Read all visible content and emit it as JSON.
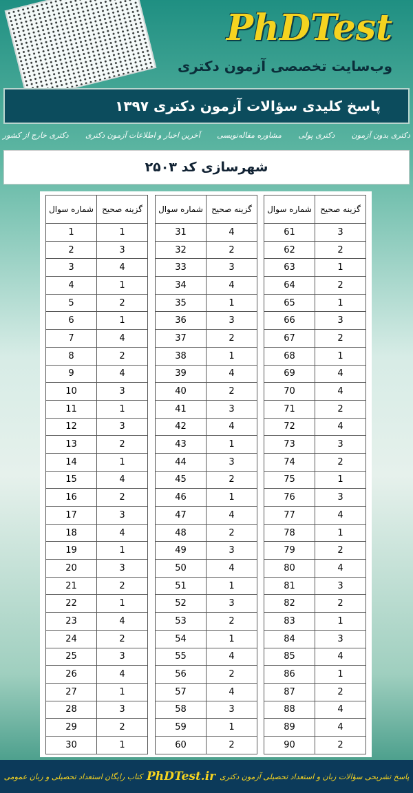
{
  "header": {
    "logo": "PhDTest",
    "tagline": "وب‌سایت تخصصی آزمون دکتری",
    "banner": "پاسخ کلیدی سؤالات آزمون دکتری ۱۳۹۷"
  },
  "nav": {
    "links": [
      "دکتری خارج از کشور",
      "آخرین اخبار و اطلاعات آزمون دکتری",
      "مشاوره مقاله‌نویسی",
      "دکتری پولی",
      "دکتری بدون آزمون"
    ]
  },
  "subject": "شهرسازی کد ۲۵۰۳",
  "table": {
    "headers": {
      "number": "شماره سوال",
      "answer": "گزینه صحیح"
    },
    "blocks": [
      {
        "rows": [
          [
            1,
            1
          ],
          [
            2,
            3
          ],
          [
            3,
            4
          ],
          [
            4,
            1
          ],
          [
            5,
            2
          ],
          [
            6,
            1
          ],
          [
            7,
            4
          ],
          [
            8,
            2
          ],
          [
            9,
            4
          ],
          [
            10,
            3
          ],
          [
            11,
            1
          ],
          [
            12,
            3
          ],
          [
            13,
            2
          ],
          [
            14,
            1
          ],
          [
            15,
            4
          ],
          [
            16,
            2
          ],
          [
            17,
            3
          ],
          [
            18,
            4
          ],
          [
            19,
            1
          ],
          [
            20,
            3
          ],
          [
            21,
            2
          ],
          [
            22,
            1
          ],
          [
            23,
            4
          ],
          [
            24,
            2
          ],
          [
            25,
            3
          ],
          [
            26,
            4
          ],
          [
            27,
            1
          ],
          [
            28,
            3
          ],
          [
            29,
            2
          ],
          [
            30,
            1
          ]
        ]
      },
      {
        "rows": [
          [
            31,
            4
          ],
          [
            32,
            2
          ],
          [
            33,
            3
          ],
          [
            34,
            4
          ],
          [
            35,
            1
          ],
          [
            36,
            3
          ],
          [
            37,
            2
          ],
          [
            38,
            1
          ],
          [
            39,
            4
          ],
          [
            40,
            2
          ],
          [
            41,
            3
          ],
          [
            42,
            4
          ],
          [
            43,
            1
          ],
          [
            44,
            3
          ],
          [
            45,
            2
          ],
          [
            46,
            1
          ],
          [
            47,
            4
          ],
          [
            48,
            2
          ],
          [
            49,
            3
          ],
          [
            50,
            4
          ],
          [
            51,
            1
          ],
          [
            52,
            3
          ],
          [
            53,
            2
          ],
          [
            54,
            1
          ],
          [
            55,
            4
          ],
          [
            56,
            2
          ],
          [
            57,
            4
          ],
          [
            58,
            3
          ],
          [
            59,
            1
          ],
          [
            60,
            2
          ]
        ]
      },
      {
        "rows": [
          [
            61,
            3
          ],
          [
            62,
            2
          ],
          [
            63,
            1
          ],
          [
            64,
            2
          ],
          [
            65,
            1
          ],
          [
            66,
            3
          ],
          [
            67,
            2
          ],
          [
            68,
            1
          ],
          [
            69,
            4
          ],
          [
            70,
            4
          ],
          [
            71,
            2
          ],
          [
            72,
            4
          ],
          [
            73,
            3
          ],
          [
            74,
            2
          ],
          [
            75,
            1
          ],
          [
            76,
            3
          ],
          [
            77,
            4
          ],
          [
            78,
            1
          ],
          [
            79,
            2
          ],
          [
            80,
            4
          ],
          [
            81,
            3
          ],
          [
            82,
            2
          ],
          [
            83,
            1
          ],
          [
            84,
            3
          ],
          [
            85,
            4
          ],
          [
            86,
            1
          ],
          [
            87,
            2
          ],
          [
            88,
            4
          ],
          [
            89,
            4
          ],
          [
            90,
            2
          ]
        ]
      }
    ]
  },
  "footer": {
    "left": "پاسخ تشریحی سؤالات زبان و استعداد تحصیلی آزمون دکتری",
    "site": "PhDTest.ir",
    "right": "کتاب رایگان استعداد تحصیلی و زبان عمومی"
  }
}
